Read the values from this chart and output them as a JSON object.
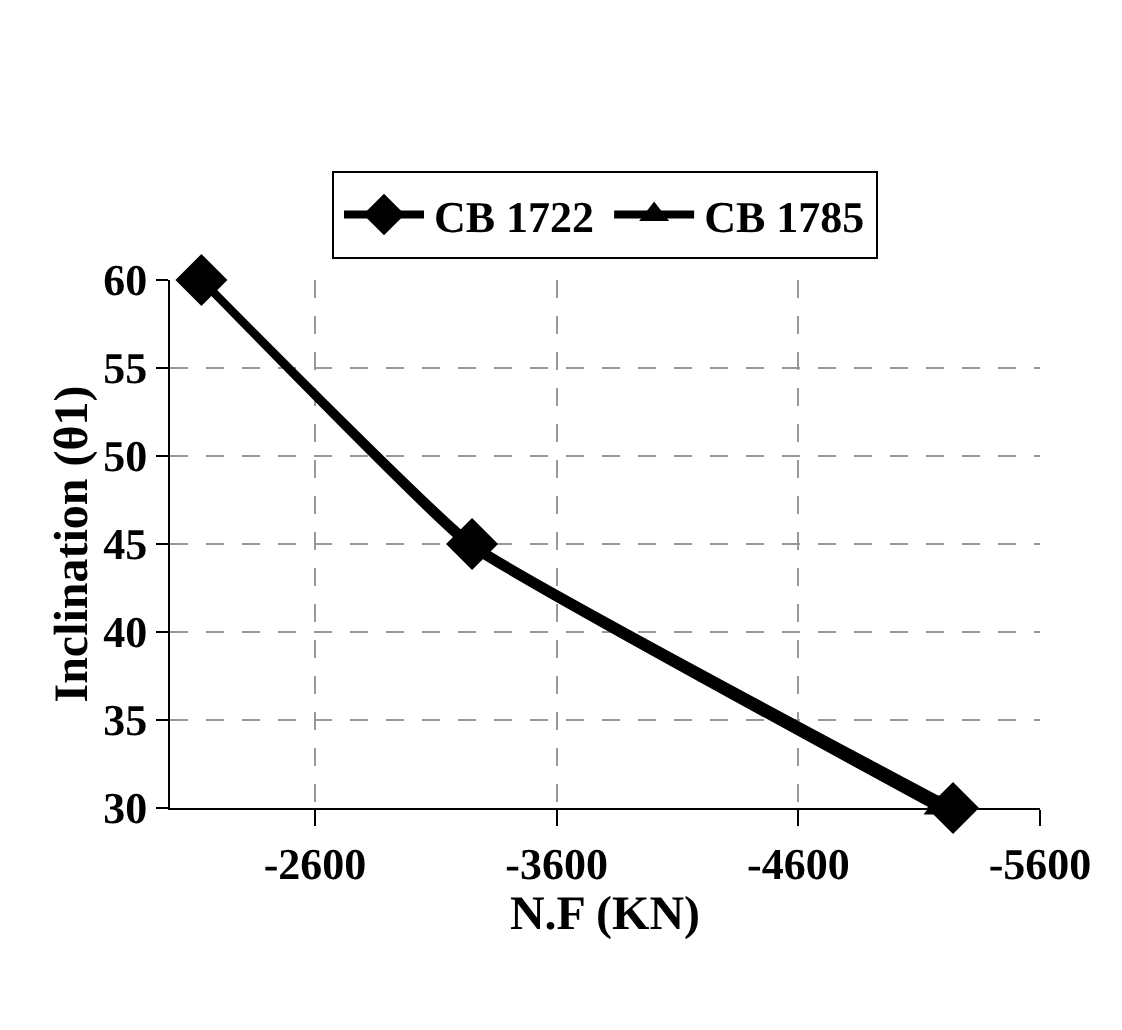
{
  "chart_data": {
    "type": "line",
    "xlabel": "N.F (KN)",
    "ylabel": "Inclination (θ1)",
    "series": [
      {
        "name": "CB 1722",
        "color": "#000000",
        "marker": "diamond",
        "x": [
          -2130,
          -3250,
          -5240
        ],
        "values": [
          60,
          45,
          30
        ]
      },
      {
        "name": "CB 1785",
        "color": "#000000",
        "marker": "triangle",
        "x": [
          -2130,
          -3230,
          -5180
        ],
        "values": [
          60,
          45,
          30
        ]
      }
    ],
    "xlim": [
      -2000,
      -5600
    ],
    "xticks": [
      -2600,
      -3600,
      -4600,
      -5600
    ],
    "ylim": [
      30,
      60
    ],
    "yticks": [
      30,
      35,
      40,
      45,
      50,
      55,
      60
    ],
    "grid": true,
    "legend": "top",
    "line_style": "solid"
  }
}
